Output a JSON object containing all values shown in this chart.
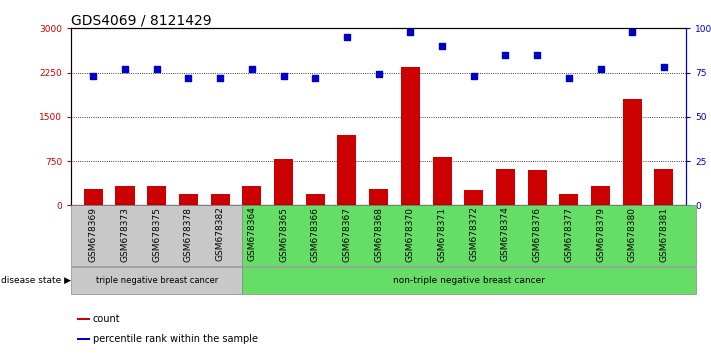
{
  "title": "GDS4069 / 8121429",
  "samples": [
    "GSM678369",
    "GSM678373",
    "GSM678375",
    "GSM678378",
    "GSM678382",
    "GSM678364",
    "GSM678365",
    "GSM678366",
    "GSM678367",
    "GSM678368",
    "GSM678370",
    "GSM678371",
    "GSM678372",
    "GSM678374",
    "GSM678376",
    "GSM678377",
    "GSM678379",
    "GSM678380",
    "GSM678381"
  ],
  "counts": [
    270,
    330,
    330,
    195,
    195,
    330,
    780,
    185,
    1200,
    270,
    2350,
    820,
    265,
    620,
    600,
    190,
    320,
    1800,
    620
  ],
  "percentiles": [
    73,
    77,
    77,
    72,
    72,
    77,
    73,
    72,
    95,
    74,
    98,
    90,
    73,
    85,
    85,
    72,
    77,
    98,
    78
  ],
  "group1_label": "triple negative breast cancer",
  "group2_label": "non-triple negative breast cancer",
  "group1_count": 5,
  "group2_count": 14,
  "disease_state_label": "disease state",
  "legend_count": "count",
  "legend_percentile": "percentile rank within the sample",
  "ylim_left": [
    0,
    3000
  ],
  "ylim_right": [
    0,
    100
  ],
  "yticks_left": [
    0,
    750,
    1500,
    2250,
    3000
  ],
  "yticks_right": [
    0,
    25,
    50,
    75,
    100
  ],
  "bar_color": "#cc0000",
  "dot_color": "#0000cc",
  "group1_bg": "#c8c8c8",
  "group2_bg": "#66dd66",
  "title_fontsize": 10,
  "tick_fontsize": 6.5,
  "label_fontsize": 8
}
